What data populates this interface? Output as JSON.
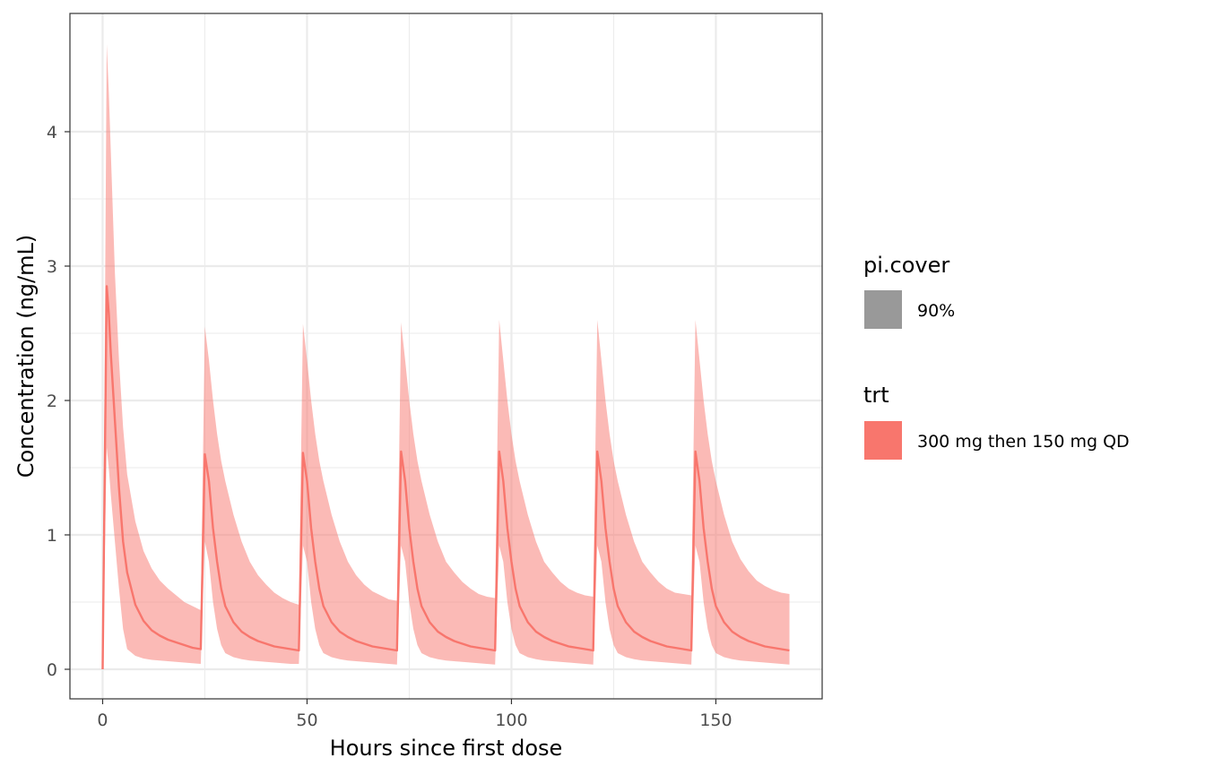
{
  "chart_data": {
    "type": "line",
    "title": "",
    "xlabel": "Hours since first dose",
    "ylabel": "Concentration (ng/mL)",
    "xlim": [
      -8,
      176
    ],
    "ylim": [
      -0.22,
      4.88
    ],
    "x_ticks": [
      0,
      50,
      100,
      150
    ],
    "y_ticks": [
      0,
      1,
      2,
      3,
      4
    ],
    "grid": true,
    "legend_position": "right",
    "legend": [
      {
        "title": "pi.cover",
        "entries": [
          {
            "label": "90%",
            "color": "#999999"
          }
        ]
      },
      {
        "title": "trt",
        "entries": [
          {
            "label": "300 mg then 150 mg QD",
            "color": "#F8766D"
          }
        ]
      }
    ],
    "series": [
      {
        "name": "300 mg then 150 mg QD",
        "color": "#F8766D",
        "band_color": "#F8766D",
        "band_opacity": 0.5,
        "pi_cover": "90%",
        "x": [
          0,
          1,
          1.5,
          2,
          3,
          4,
          5,
          6,
          8,
          10,
          12,
          14,
          16,
          18,
          20,
          22,
          24,
          25,
          26,
          27,
          28,
          29,
          30,
          32,
          34,
          36,
          38,
          40,
          42,
          44,
          46,
          48,
          49,
          50,
          51,
          52,
          53,
          54,
          56,
          58,
          60,
          62,
          64,
          66,
          68,
          70,
          72,
          73,
          74,
          75,
          76,
          77,
          78,
          80,
          82,
          84,
          86,
          88,
          90,
          92,
          94,
          96,
          97,
          98,
          99,
          100,
          101,
          102,
          104,
          106,
          108,
          110,
          112,
          114,
          116,
          118,
          120,
          121,
          122,
          123,
          124,
          125,
          126,
          128,
          130,
          132,
          134,
          136,
          138,
          140,
          142,
          144,
          145,
          146,
          147,
          148,
          149,
          150,
          152,
          154,
          156,
          158,
          160,
          162,
          164,
          166,
          168
        ],
        "median": [
          0,
          2.85,
          2.65,
          2.35,
          1.85,
          1.35,
          0.95,
          0.72,
          0.48,
          0.36,
          0.29,
          0.25,
          0.22,
          0.2,
          0.18,
          0.16,
          0.15,
          1.6,
          1.4,
          1.05,
          0.8,
          0.6,
          0.47,
          0.35,
          0.28,
          0.24,
          0.21,
          0.19,
          0.17,
          0.16,
          0.15,
          0.14,
          1.61,
          1.4,
          1.05,
          0.8,
          0.6,
          0.47,
          0.35,
          0.28,
          0.24,
          0.21,
          0.19,
          0.17,
          0.16,
          0.15,
          0.14,
          1.62,
          1.4,
          1.05,
          0.8,
          0.6,
          0.47,
          0.35,
          0.28,
          0.24,
          0.21,
          0.19,
          0.17,
          0.16,
          0.15,
          0.14,
          1.62,
          1.4,
          1.05,
          0.8,
          0.6,
          0.47,
          0.35,
          0.28,
          0.24,
          0.21,
          0.19,
          0.17,
          0.16,
          0.15,
          0.14,
          1.62,
          1.4,
          1.05,
          0.8,
          0.6,
          0.47,
          0.35,
          0.28,
          0.24,
          0.21,
          0.19,
          0.17,
          0.16,
          0.15,
          0.14,
          1.62,
          1.4,
          1.05,
          0.8,
          0.6,
          0.47,
          0.35,
          0.28,
          0.24,
          0.21,
          0.19,
          0.17,
          0.16,
          0.15,
          0.14
        ],
        "lower": [
          0,
          1.65,
          1.5,
          1.3,
          0.95,
          0.6,
          0.3,
          0.15,
          0.1,
          0.08,
          0.07,
          0.065,
          0.06,
          0.055,
          0.05,
          0.045,
          0.04,
          0.95,
          0.8,
          0.5,
          0.3,
          0.18,
          0.12,
          0.09,
          0.075,
          0.065,
          0.06,
          0.055,
          0.05,
          0.045,
          0.04,
          0.04,
          0.92,
          0.8,
          0.5,
          0.3,
          0.18,
          0.12,
          0.09,
          0.075,
          0.065,
          0.06,
          0.055,
          0.05,
          0.045,
          0.04,
          0.035,
          0.92,
          0.8,
          0.5,
          0.3,
          0.18,
          0.12,
          0.09,
          0.075,
          0.065,
          0.06,
          0.055,
          0.05,
          0.045,
          0.04,
          0.035,
          0.92,
          0.8,
          0.5,
          0.3,
          0.18,
          0.12,
          0.09,
          0.075,
          0.065,
          0.06,
          0.055,
          0.05,
          0.045,
          0.04,
          0.035,
          0.92,
          0.8,
          0.5,
          0.3,
          0.18,
          0.12,
          0.09,
          0.075,
          0.065,
          0.06,
          0.055,
          0.05,
          0.045,
          0.04,
          0.035,
          0.92,
          0.8,
          0.5,
          0.3,
          0.18,
          0.12,
          0.09,
          0.075,
          0.065,
          0.06,
          0.055,
          0.05,
          0.045,
          0.04,
          0.035
        ],
        "upper": [
          0,
          4.65,
          4.3,
          3.85,
          2.95,
          2.3,
          1.8,
          1.45,
          1.1,
          0.88,
          0.75,
          0.66,
          0.6,
          0.55,
          0.5,
          0.47,
          0.44,
          2.55,
          2.3,
          2.0,
          1.75,
          1.55,
          1.4,
          1.15,
          0.95,
          0.8,
          0.7,
          0.63,
          0.57,
          0.53,
          0.5,
          0.48,
          2.57,
          2.3,
          2.0,
          1.75,
          1.55,
          1.4,
          1.15,
          0.95,
          0.8,
          0.7,
          0.63,
          0.58,
          0.55,
          0.52,
          0.51,
          2.58,
          2.3,
          2.0,
          1.75,
          1.55,
          1.4,
          1.15,
          0.95,
          0.8,
          0.72,
          0.65,
          0.6,
          0.56,
          0.54,
          0.53,
          2.6,
          2.3,
          2.0,
          1.75,
          1.55,
          1.4,
          1.15,
          0.95,
          0.8,
          0.72,
          0.65,
          0.6,
          0.57,
          0.55,
          0.54,
          2.6,
          2.3,
          2.0,
          1.75,
          1.55,
          1.4,
          1.15,
          0.95,
          0.8,
          0.72,
          0.65,
          0.6,
          0.57,
          0.56,
          0.55,
          2.6,
          2.3,
          2.0,
          1.75,
          1.55,
          1.4,
          1.15,
          0.95,
          0.82,
          0.73,
          0.66,
          0.62,
          0.59,
          0.57,
          0.56
        ]
      }
    ]
  }
}
